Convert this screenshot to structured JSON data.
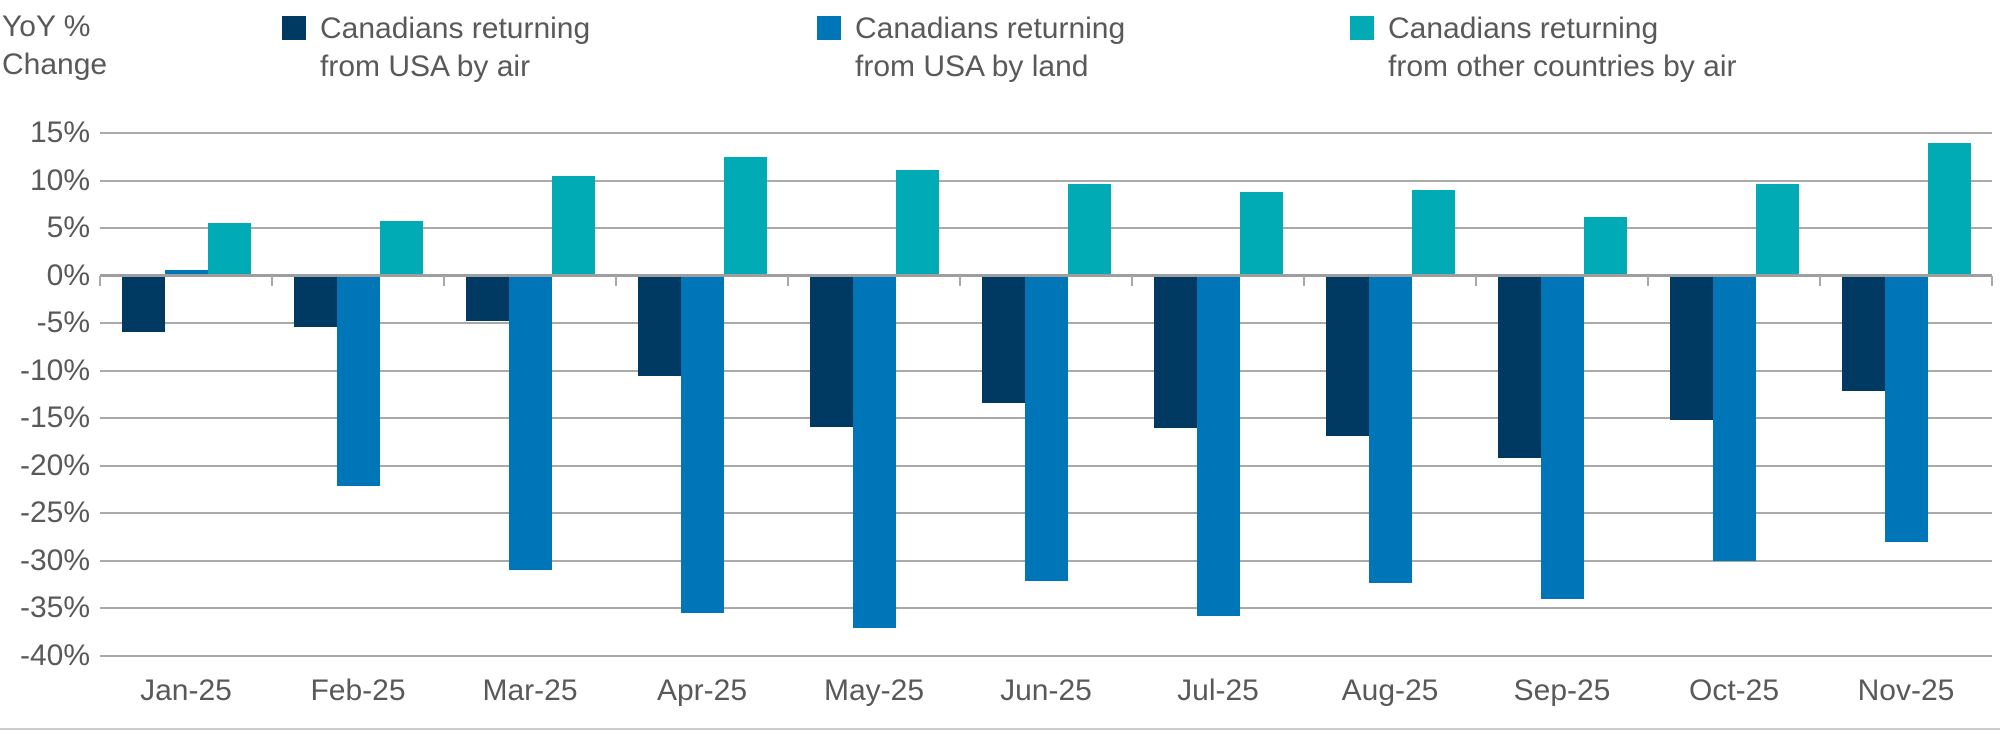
{
  "chart_data": {
    "type": "bar",
    "title": "",
    "y_axis_title_lines": [
      "YoY %",
      "Change"
    ],
    "categories": [
      "Jan-25",
      "Feb-25",
      "Mar-25",
      "Apr-25",
      "May-25",
      "Jun-25",
      "Jul-25",
      "Aug-25",
      "Sep-25",
      "Oct-25",
      "Nov-25"
    ],
    "series": [
      {
        "name": "Canadians returning from USA by air",
        "label_lines": [
          "Canadians returning",
          "from USA by air"
        ],
        "color": "#003a63",
        "values": [
          -5.9,
          -5.4,
          -4.8,
          -10.6,
          -15.9,
          -13.4,
          -16.1,
          -16.9,
          -19.2,
          -15.2,
          -12.2
        ]
      },
      {
        "name": "Canadians returning from USA by land",
        "label_lines": [
          "Canadians returning",
          "from USA by land"
        ],
        "color": "#0075b8",
        "values": [
          0.6,
          -22.2,
          -31.0,
          -35.5,
          -37.1,
          -32.2,
          -35.8,
          -32.4,
          -34.0,
          -30.1,
          -28.0
        ]
      },
      {
        "name": "Canadians returning from other countries by air",
        "label_lines": [
          "Canadians returning",
          "from other countries by air"
        ],
        "color": "#00abb5",
        "values": [
          5.5,
          5.7,
          10.5,
          12.5,
          11.1,
          9.6,
          8.8,
          9.0,
          6.2,
          9.6,
          13.9
        ]
      }
    ],
    "ylim": [
      -40,
      15
    ],
    "y_tick_step": 5,
    "y_tick_labels": [
      "15%",
      "10%",
      "5%",
      "0%",
      "-5%",
      "-10%",
      "-15%",
      "-20%",
      "-25%",
      "-30%",
      "-35%",
      "-40%"
    ],
    "grid": true,
    "legend_position": "top",
    "colors": {
      "grid": "#a9a9a9",
      "zero_axis": "#9e9e9e",
      "text": "#595959"
    }
  }
}
